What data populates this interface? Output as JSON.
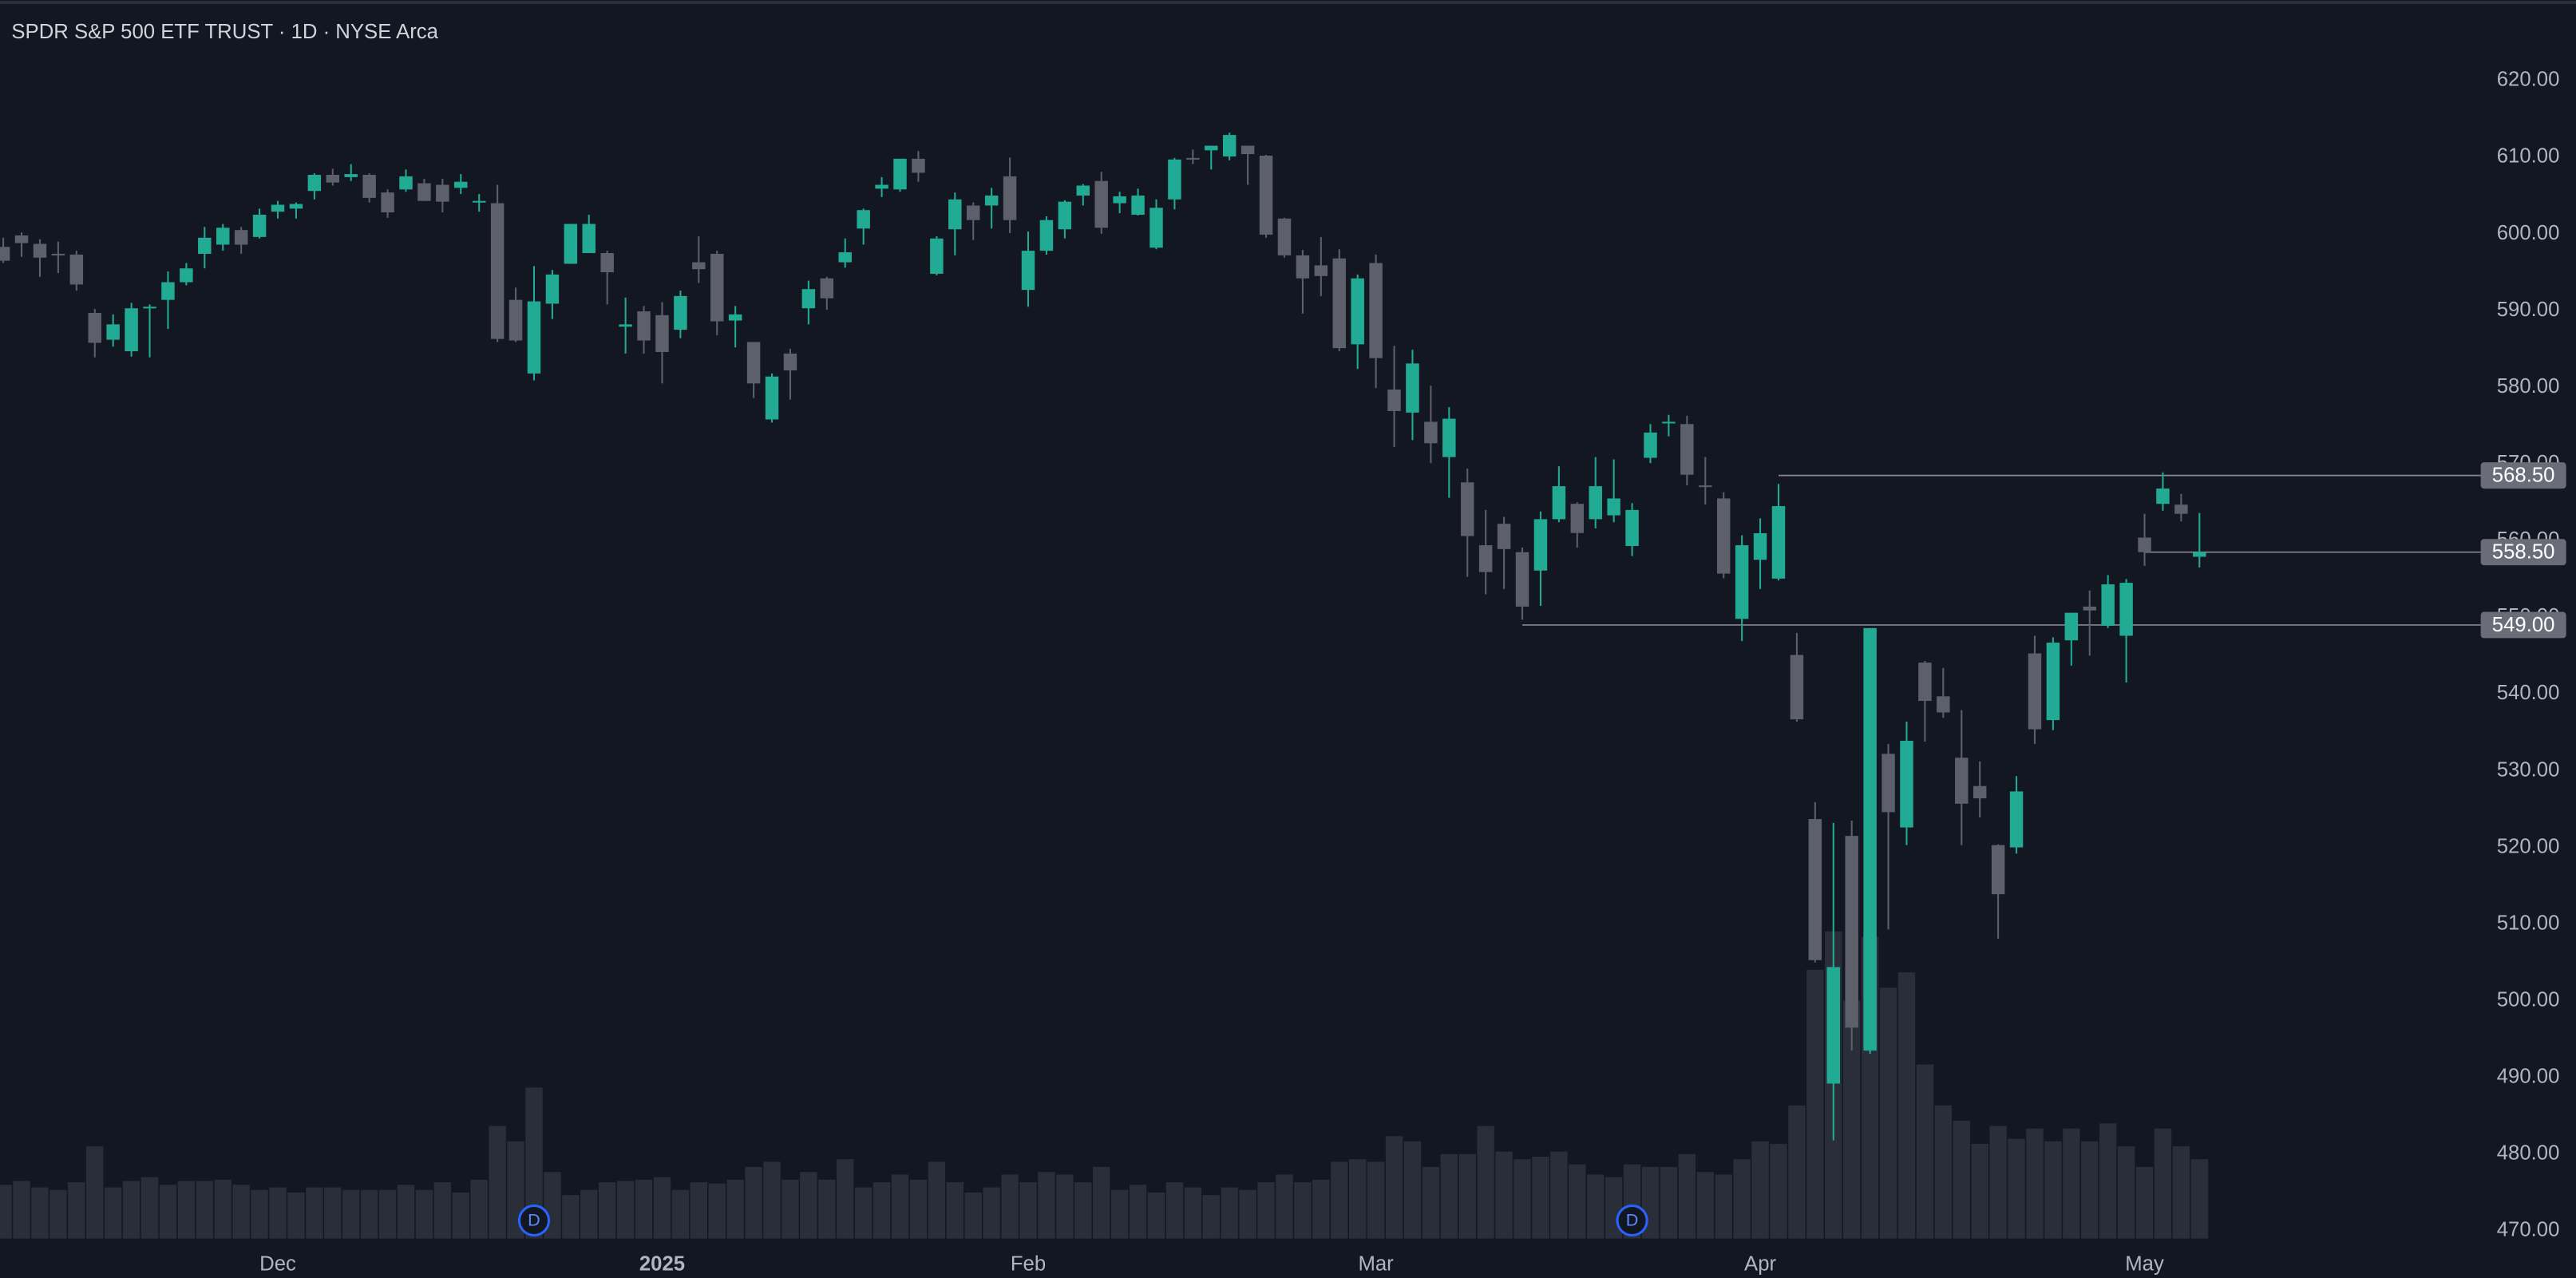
{
  "chart_data": {
    "type": "candlestick",
    "title": "SPDR S&P 500 ETF TRUST · 1D · NYSE Arca",
    "categories": [
      null,
      null,
      null,
      null,
      null,
      null,
      null,
      null,
      null,
      null,
      null,
      null,
      null,
      null,
      null,
      "Dec",
      null,
      null,
      null,
      null,
      null,
      null,
      null,
      null,
      null,
      null,
      null,
      null,
      null,
      null,
      null,
      null,
      null,
      null,
      null,
      null,
      "2025",
      null,
      null,
      null,
      null,
      null,
      null,
      null,
      null,
      null,
      null,
      null,
      null,
      null,
      null,
      null,
      null,
      null,
      null,
      null,
      "Feb",
      null,
      null,
      null,
      null,
      null,
      null,
      null,
      null,
      null,
      null,
      null,
      null,
      null,
      null,
      null,
      null,
      null,
      null,
      "Mar",
      null,
      null,
      null,
      null,
      null,
      null,
      null,
      null,
      null,
      null,
      null,
      null,
      null,
      null,
      null,
      null,
      null,
      null,
      null,
      null,
      "Apr",
      null,
      null,
      null,
      null,
      null,
      null,
      null,
      null,
      null,
      null,
      null,
      null,
      null,
      null,
      null,
      null,
      null,
      null,
      null,
      null,
      "May",
      null,
      null,
      null
    ],
    "open": [
      598.3,
      599.8,
      598.7,
      597.4,
      597.3,
      589.7,
      586.2,
      584.7,
      590.4,
      591.4,
      593.7,
      597.4,
      598.6,
      600.5,
      599.6,
      602.9,
      603.3,
      605.6,
      607.7,
      607.4,
      607.7,
      605.4,
      605.8,
      606.6,
      606.4,
      606.0,
      604.2,
      604.0,
      591.4,
      581.8,
      590.9,
      596.1,
      597.5,
      597.5,
      587.9,
      589.9,
      589.4,
      587.5,
      596.3,
      597.4,
      588.7,
      585.9,
      575.8,
      584.4,
      590.3,
      594.2,
      596.3,
      600.7,
      605.9,
      605.8,
      609.8,
      594.8,
      600.6,
      603.7,
      603.7,
      607.5,
      592.7,
      597.8,
      600.6,
      605.0,
      606.9,
      604.0,
      602.5,
      598.2,
      604.5,
      609.9,
      610.9,
      610.1,
      611.5,
      610.2,
      602.0,
      597.2,
      595.9,
      596.8,
      585.6,
      596.2,
      579.7,
      576.7,
      575.5,
      570.9,
      567.6,
      559.4,
      562.2,
      558.5,
      556.1,
      562.8,
      564.8,
      562.8,
      563.3,
      559.3,
      570.8,
      575.3,
      575.2,
      567.2,
      565.5,
      549.8,
      557.5,
      555.05,
      545.1,
      523.7,
      489.2,
      521.5,
      493.5,
      532.2,
      522.6,
      544.1,
      539.7,
      531.7,
      528.0,
      520.3,
      520.0,
      545.3,
      536.6,
      547.0,
      551.4,
      548.9,
      547.6,
      560.4,
      564.8,
      564.7,
      557.9
    ],
    "high": [
      599.5,
      600.2,
      599.3,
      599.0,
      597.8,
      590.2,
      589.5,
      591.0,
      590.8,
      595.1,
      596.2,
      600.9,
      601.3,
      600.9,
      603.3,
      604.3,
      604.1,
      607.9,
      608.5,
      609.1,
      607.9,
      605.8,
      608.4,
      607.2,
      607.2,
      607.8,
      605.2,
      606.4,
      593.0,
      595.8,
      595.3,
      601.3,
      602.5,
      597.8,
      591.7,
      590.6,
      591.1,
      592.6,
      599.7,
      597.8,
      590.6,
      585.9,
      581.8,
      585.0,
      593.9,
      594.4,
      599.4,
      603.3,
      607.4,
      609.8,
      610.8,
      599.7,
      605.4,
      604.1,
      606.0,
      609.96,
      600.3,
      602.3,
      604.4,
      606.5,
      608.1,
      605.5,
      605.9,
      604.5,
      609.9,
      611.0,
      611.5,
      613.2,
      611.5,
      610.3,
      602.1,
      597.9,
      599.6,
      598.0,
      594.7,
      597.3,
      585.4,
      584.9,
      580.2,
      577.4,
      569.4,
      564.0,
      563.1,
      559.1,
      563.8,
      569.7,
      565.0,
      570.9,
      570.6,
      564.9,
      575.2,
      576.4,
      576.3,
      570.9,
      566.3,
      560.7,
      562.9,
      567.4,
      547.97,
      525.9,
      523.2,
      523.5,
      548.6,
      533.5,
      536.4,
      544.3,
      543.4,
      537.9,
      531.2,
      520.4,
      529.3,
      547.6,
      547.4,
      550.5,
      553.5,
      555.5,
      555.0,
      563.5,
      568.9,
      566.1,
      563.6
    ],
    "low": [
      596.2,
      597.0,
      594.4,
      594.9,
      592.6,
      583.9,
      585.3,
      584.0,
      583.9,
      587.6,
      593.3,
      595.5,
      597.8,
      597.4,
      599.4,
      602.0,
      602.0,
      604.5,
      606.3,
      606.9,
      604.1,
      602.1,
      605.5,
      604.3,
      602.8,
      605.2,
      602.9,
      585.9,
      585.9,
      580.9,
      588.9,
      596.1,
      598.1,
      590.8,
      584.4,
      584.4,
      580.5,
      586.4,
      593.6,
      586.8,
      585.2,
      578.6,
      575.4,
      578.4,
      588.2,
      590.1,
      595.6,
      598.6,
      604.8,
      605.5,
      606.8,
      594.6,
      597.2,
      599.2,
      600.7,
      600.1,
      590.5,
      597.3,
      599.4,
      603.7,
      600.0,
      602.7,
      602.4,
      598.0,
      603.2,
      609.1,
      608.4,
      609.6,
      606.4,
      599.5,
      596.9,
      589.6,
      591.9,
      584.7,
      582.4,
      579.9,
      572.2,
      573.1,
      570.1,
      565.6,
      555.3,
      553.0,
      553.7,
      549.7,
      551.5,
      562.4,
      559.1,
      561.6,
      562.4,
      558.0,
      570.1,
      573.6,
      567.2,
      564.7,
      555.1,
      546.9,
      553.7,
      554.8,
      536.4,
      505.0,
      481.8,
      493.5,
      493.1,
      509.3,
      520.3,
      533.8,
      536.9,
      520.3,
      523.9,
      508.1,
      519.2,
      533.5,
      535.3,
      543.7,
      545.0,
      548.6,
      541.5,
      556.7,
      563.9,
      562.5,
      556.5
    ],
    "close": [
      596.5,
      598.8,
      596.9,
      597.2,
      593.4,
      585.8,
      588.2,
      590.3,
      590.5,
      593.7,
      595.5,
      599.5,
      600.8,
      598.6,
      602.5,
      603.8,
      603.9,
      607.7,
      606.7,
      607.8,
      604.7,
      602.8,
      607.5,
      604.3,
      604.2,
      606.8,
      604.3,
      586.3,
      586.1,
      591.2,
      594.7,
      601.3,
      601.3,
      595.0,
      588.2,
      586.1,
      584.6,
      591.9,
      595.4,
      588.6,
      589.5,
      580.5,
      581.4,
      582.2,
      592.8,
      591.6,
      597.6,
      603.1,
      606.4,
      609.8,
      607.97,
      599.4,
      604.5,
      601.8,
      605.0,
      601.8,
      597.8,
      601.8,
      604.2,
      606.3,
      600.8,
      604.9,
      605.0,
      603.4,
      609.7,
      609.7,
      611.5,
      612.9,
      610.4,
      599.9,
      597.2,
      594.2,
      594.5,
      585.1,
      594.2,
      583.8,
      576.9,
      583.1,
      572.7,
      575.9,
      560.6,
      555.9,
      558.9,
      551.4,
      562.8,
      567.1,
      561.0,
      567.1,
      565.5,
      564.0,
      574.1,
      575.5,
      568.6,
      567.1,
      555.7,
      559.4,
      560.97,
      564.5,
      536.7,
      505.3,
      504.4,
      496.5,
      548.6,
      524.6,
      533.9,
      539.1,
      537.6,
      525.7,
      526.4,
      513.9,
      527.3,
      535.4,
      546.7,
      550.6,
      550.9,
      554.3,
      554.5,
      558.5,
      566.8,
      563.5,
      558.5
    ],
    "volume": [
      42,
      45,
      40,
      38,
      44,
      72,
      40,
      45,
      48,
      42,
      45,
      45,
      46,
      42,
      38,
      40,
      36,
      40,
      40,
      38,
      38,
      38,
      42,
      38,
      44,
      36,
      46,
      88,
      76,
      118,
      52,
      34,
      38,
      44,
      45,
      46,
      48,
      38,
      44,
      43,
      46,
      56,
      60,
      46,
      52,
      46,
      62,
      40,
      44,
      50,
      46,
      60,
      44,
      36,
      40,
      50,
      44,
      52,
      50,
      44,
      56,
      38,
      42,
      36,
      44,
      40,
      34,
      40,
      38,
      44,
      50,
      44,
      46,
      60,
      62,
      60,
      80,
      76,
      56,
      66,
      66,
      88,
      68,
      62,
      64,
      68,
      58,
      50,
      48,
      58,
      56,
      56,
      66,
      52,
      50,
      62,
      76,
      74,
      104,
      210,
      240,
      186,
      236,
      196,
      208,
      136,
      104,
      92,
      74,
      88,
      78,
      86,
      76,
      86,
      76,
      90,
      72,
      56,
      86,
      72,
      62
    ],
    "up_color": "#22ab94",
    "down_color": "#5d606b",
    "volume_color": "#2a2e39",
    "ylim": [
      467,
      627.8
    ],
    "yticks": [
      {
        "value": 620,
        "label": "620.00"
      },
      {
        "value": 610,
        "label": "610.00"
      },
      {
        "value": 600,
        "label": "600.00"
      },
      {
        "value": 590,
        "label": "590.00"
      },
      {
        "value": 580,
        "label": "580.00"
      },
      {
        "value": 570,
        "label": "570.00"
      },
      {
        "value": 560,
        "label": "560.00"
      },
      {
        "value": 550,
        "label": "550.00"
      },
      {
        "value": 540,
        "label": "540.00"
      },
      {
        "value": 530,
        "label": "530.00"
      },
      {
        "value": 520,
        "label": "520.00"
      },
      {
        "value": 510,
        "label": "510.00"
      },
      {
        "value": 500,
        "label": "500.00"
      },
      {
        "value": 490,
        "label": "490.00"
      },
      {
        "value": 480,
        "label": "480.00"
      },
      {
        "value": 470,
        "label": "470.00"
      }
    ],
    "grid": false,
    "price_lines": [
      {
        "value": 568.5,
        "label": "568.50",
        "start": 97
      },
      {
        "value": 558.5,
        "label": "558.50",
        "start": 117
      },
      {
        "value": 549,
        "label": "549.00",
        "start": 83
      }
    ],
    "markers": {
      "label": "D",
      "indices": [
        29,
        89
      ]
    }
  }
}
